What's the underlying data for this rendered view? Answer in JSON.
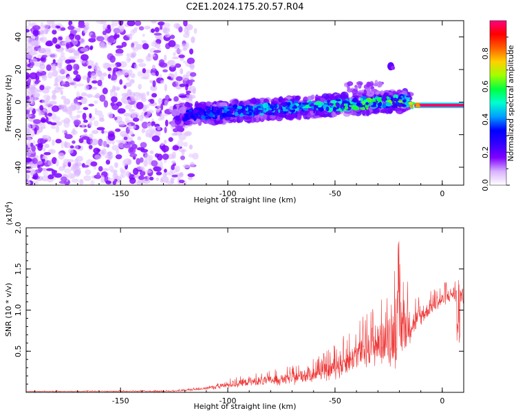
{
  "title": "C2E1.2024.175.20.57.R04",
  "chart_data": [
    {
      "type": "heatmap",
      "name": "spectrogram",
      "xlabel": "Height of straight line (km)",
      "ylabel": "Frequency (Hz)",
      "xlim": [
        -194,
        10
      ],
      "ylim": [
        -51,
        50
      ],
      "xticks": [
        -150,
        -100,
        -50,
        0
      ],
      "yticks": [
        -40,
        -20,
        0,
        20,
        40
      ],
      "colorbar": {
        "label": "Normalized spectral amplitude",
        "range": [
          0.0,
          1.0
        ],
        "ticks": [
          0.0,
          0.2,
          0.4,
          0.6,
          0.8
        ],
        "colormap": [
          "#ffffff",
          "#d9b3ff",
          "#8000ff",
          "#3300ff",
          "#0000ff",
          "#00a0ff",
          "#00ffd0",
          "#00ff40",
          "#a0ff00",
          "#ffd000",
          "#ff6000",
          "#ff0000",
          "#ff0080"
        ]
      },
      "features": [
        {
          "name": "scattered noise",
          "x_range": [
            -194,
            -125
          ],
          "y_range": [
            -50,
            50
          ],
          "amplitude": 0.15
        },
        {
          "name": "signal band",
          "x_range": [
            -125,
            -15
          ],
          "freq_start": -8,
          "freq_end": 1,
          "amplitude": 0.3
        },
        {
          "name": "secondary blobs",
          "x_range": [
            -45,
            -28
          ],
          "y_range": [
            5,
            12
          ],
          "amplitude": 0.1
        },
        {
          "name": "blob",
          "x": -24,
          "y": 22,
          "amplitude": 0.2
        },
        {
          "name": "carrier line",
          "x_range": [
            -13,
            10
          ],
          "y": -2,
          "amplitude": 0.98
        }
      ]
    },
    {
      "type": "line",
      "name": "snr",
      "xlabel": "Height of straight line (km)",
      "ylabel": "SNR (10 * v/v)",
      "scale_label": "(x10",
      "scale_exp": "4",
      "scale_close": ")",
      "xlim": [
        -194,
        10
      ],
      "ylim": [
        0,
        2.0
      ],
      "xticks": [
        -150,
        -100,
        -50,
        0
      ],
      "yticks": [
        0.5,
        1.0,
        1.5,
        2.0
      ],
      "ytick_labels": [
        "0.5",
        "1.0",
        "1.5",
        "2.0"
      ],
      "color": "#ee3333",
      "envelope": [
        {
          "x": -194,
          "base": 0.01,
          "spread": 0.01
        },
        {
          "x": -125,
          "base": 0.01,
          "spread": 0.02
        },
        {
          "x": -110,
          "base": 0.04,
          "spread": 0.05
        },
        {
          "x": -100,
          "base": 0.07,
          "spread": 0.1
        },
        {
          "x": -90,
          "base": 0.1,
          "spread": 0.15
        },
        {
          "x": -70,
          "base": 0.13,
          "spread": 0.2
        },
        {
          "x": -55,
          "base": 0.2,
          "spread": 0.3
        },
        {
          "x": -45,
          "base": 0.28,
          "spread": 0.45
        },
        {
          "x": -35,
          "base": 0.42,
          "spread": 0.6
        },
        {
          "x": -25,
          "base": 0.5,
          "spread": 0.75
        },
        {
          "x": -20,
          "base": 0.55,
          "spread": 1.45
        },
        {
          "x": -15,
          "base": 0.72,
          "spread": 0.55
        },
        {
          "x": -10,
          "base": 0.85,
          "spread": 0.35
        },
        {
          "x": -5,
          "base": 1.0,
          "spread": 0.25
        },
        {
          "x": 5,
          "base": 1.15,
          "spread": 0.3
        },
        {
          "x": 10,
          "base": 1.1,
          "spread": 0.3
        }
      ]
    }
  ]
}
